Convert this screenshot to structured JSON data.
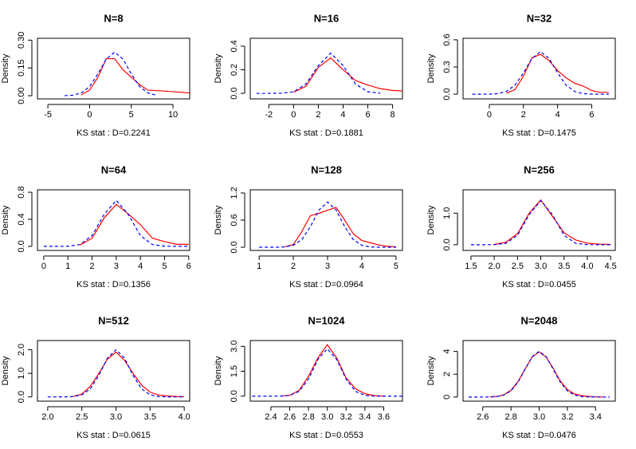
{
  "chart_data": [
    {
      "type": "line",
      "title": "N=8",
      "x_label": "KS stat : D=0.2241",
      "y_label": "Density",
      "x": [
        -3,
        -2,
        -1,
        0,
        1,
        2,
        3,
        4,
        5,
        6,
        7,
        8,
        10,
        12
      ],
      "series": [
        {
          "color": "#ff0000",
          "values": [
            null,
            null,
            0.005,
            0.03,
            0.1,
            0.2,
            0.2,
            0.14,
            0.1,
            0.06,
            0.03,
            0.028,
            0.022,
            0.015
          ]
        },
        {
          "color": "#0000ff",
          "dash": true,
          "values": [
            0.0005,
            0.003,
            0.015,
            0.049,
            0.118,
            0.198,
            0.235,
            0.198,
            0.118,
            0.049,
            0.015,
            0.003,
            null,
            null
          ]
        }
      ],
      "xlim": [
        -6.25,
        12
      ],
      "ylim": [
        -0.017,
        0.31
      ],
      "xticks": [
        -5,
        0,
        5,
        10
      ],
      "yticks": [
        {
          "value": 0,
          "label": "0.00"
        },
        {
          "value": 0.15,
          "label": "0.15"
        },
        {
          "value": 0.3,
          "label": "0.30"
        }
      ]
    },
    {
      "type": "line",
      "title": "N=16",
      "x_label": "KS stat : D=0.1881",
      "y_label": "Density",
      "x": [
        -3,
        -2,
        -1,
        0,
        1,
        2,
        3,
        4,
        5,
        6,
        7,
        8,
        8.8
      ],
      "series": [
        {
          "color": "#ff0000",
          "values": [
            null,
            null,
            null,
            0.01,
            0.06,
            0.22,
            0.3,
            0.2,
            0.11,
            0.07,
            0.04,
            0.025,
            0.02
          ]
        },
        {
          "color": "#0000ff",
          "dash": true,
          "values": [
            0,
            0,
            0.001,
            0.013,
            0.079,
            0.236,
            0.34,
            0.236,
            0.079,
            0.013,
            0.001,
            null,
            null
          ]
        }
      ],
      "xlim": [
        -3.5,
        8.8
      ],
      "ylim": [
        -0.047,
        0.467
      ],
      "xticks": [
        -2,
        0,
        2,
        4,
        6,
        8
      ],
      "yticks": [
        {
          "value": 0,
          "label": "0.0"
        },
        0.2,
        0.4
      ]
    },
    {
      "type": "line",
      "title": "N=32",
      "x_label": "KS stat : D=0.1475",
      "y_label": "Density",
      "x": [
        -1,
        -0.5,
        0,
        0.5,
        1,
        1.5,
        2,
        2.5,
        3,
        3.5,
        4,
        4.5,
        5,
        5.5,
        6,
        6.5,
        7
      ],
      "series": [
        {
          "color": "#ff0000",
          "values": [
            null,
            null,
            null,
            null,
            0.01,
            0.05,
            0.2,
            0.4,
            0.44,
            0.37,
            0.26,
            0.18,
            0.12,
            0.09,
            0.04,
            0.02,
            0.02
          ]
        },
        {
          "color": "#0000ff",
          "dash": true,
          "values": [
            0,
            0,
            0.001,
            0.006,
            0.03,
            0.099,
            0.236,
            0.395,
            0.47,
            0.395,
            0.236,
            0.099,
            0.03,
            0.006,
            0.001,
            0,
            0
          ]
        }
      ],
      "xlim": [
        -1.54,
        7.38
      ],
      "ylim": [
        -0.052,
        0.617
      ],
      "xticks": [
        0,
        2,
        4,
        6
      ],
      "yticks": [
        {
          "value": 0,
          "label": "0.0"
        },
        0.3,
        0.6
      ]
    },
    {
      "type": "line",
      "title": "N=64",
      "x_label": "KS stat : D=0.1356",
      "y_label": "Density",
      "x": [
        0,
        0.5,
        1,
        1.5,
        2,
        2.5,
        3,
        3.5,
        4,
        4.5,
        5,
        5.5,
        6
      ],
      "series": [
        {
          "color": "#ff0000",
          "values": [
            null,
            null,
            null,
            0.02,
            0.12,
            0.42,
            0.62,
            0.48,
            0.32,
            0.12,
            0.07,
            0.03,
            0.03
          ]
        },
        {
          "color": "#0000ff",
          "dash": true,
          "values": [
            0,
            0,
            0.002,
            0.026,
            0.159,
            0.473,
            0.68,
            0.473,
            0.159,
            0.026,
            0.002,
            0,
            0
          ]
        }
      ],
      "xlim": [
        -0.26,
        6.04
      ],
      "ylim": [
        -0.06,
        0.836
      ],
      "xticks": [
        0,
        1,
        2,
        3,
        4,
        5,
        6
      ],
      "yticks": [
        {
          "value": 0,
          "label": "0.0"
        },
        0.4,
        0.8
      ]
    },
    {
      "type": "line",
      "title": "N=128",
      "x_label": "KS stat : D=0.0964",
      "y_label": "Density",
      "x": [
        1,
        1.25,
        1.5,
        1.75,
        2,
        2.25,
        2.5,
        2.75,
        3,
        3.25,
        3.5,
        3.75,
        4,
        4.25,
        4.5,
        4.75,
        5
      ],
      "series": [
        {
          "color": "#ff0000",
          "values": [
            null,
            null,
            null,
            0.01,
            0.06,
            0.35,
            0.7,
            0.75,
            0.82,
            0.88,
            0.6,
            0.3,
            0.15,
            0.1,
            0.05,
            0.02,
            0.01
          ]
        },
        {
          "color": "#0000ff",
          "dash": true,
          "values": [
            0,
            0,
            0.001,
            0.008,
            0.044,
            0.172,
            0.458,
            0.823,
            1,
            0.823,
            0.458,
            0.172,
            0.044,
            0.008,
            0.001,
            0,
            0
          ]
        }
      ],
      "xlim": [
        0.74,
        5.19
      ],
      "ylim": [
        -0.07,
        1.27
      ],
      "xticks": [
        1,
        2,
        3,
        4,
        5
      ],
      "yticks": [
        {
          "value": 0,
          "label": "0.0"
        },
        0.6,
        1.2
      ]
    },
    {
      "type": "line",
      "title": "N=256",
      "x_label": "KS stat : D=0.0455",
      "y_label": "Density",
      "x": [
        1.5,
        1.75,
        2,
        2.25,
        2.5,
        2.75,
        3,
        3.25,
        3.5,
        3.75,
        4,
        4.25,
        4.5
      ],
      "series": [
        {
          "color": "#ff0000",
          "values": [
            null,
            null,
            0.01,
            0.08,
            0.35,
            1.0,
            1.42,
            0.9,
            0.38,
            0.15,
            0.05,
            0.02,
            0.01
          ]
        },
        {
          "color": "#0000ff",
          "dash": true,
          "values": [
            0,
            0,
            0.003,
            0.044,
            0.3,
            0.953,
            1.4,
            0.953,
            0.3,
            0.044,
            0.003,
            0,
            0
          ]
        }
      ],
      "xlim": [
        1.33,
        4.6
      ],
      "ylim": [
        -0.18,
        1.74
      ],
      "xticks": [
        1.5,
        {
          "value": 2,
          "label": "2.0"
        },
        2.5,
        {
          "value": 3,
          "label": "3.0"
        },
        3.5,
        {
          "value": 4,
          "label": "4.0"
        },
        4.5
      ],
      "yticks": [
        {
          "value": 0,
          "label": "0.0"
        },
        {
          "value": 1,
          "label": "1.0"
        }
      ]
    },
    {
      "type": "line",
      "title": "N=512",
      "x_label": "KS stat : D=0.0615",
      "y_label": "Density",
      "x": [
        2,
        2.125,
        2.25,
        2.375,
        2.5,
        2.625,
        2.75,
        2.875,
        3,
        3.125,
        3.25,
        3.375,
        3.5,
        3.625,
        3.75,
        3.875,
        4
      ],
      "series": [
        {
          "color": "#ff0000",
          "values": [
            null,
            null,
            null,
            0.02,
            0.12,
            0.45,
            1.0,
            1.6,
            1.9,
            1.55,
            1.0,
            0.5,
            0.2,
            0.08,
            0.04,
            0.02,
            0.01
          ]
        },
        {
          "color": "#0000ff",
          "dash": true,
          "values": [
            0,
            0,
            0.002,
            0.015,
            0.088,
            0.344,
            0.916,
            1.646,
            2,
            1.646,
            0.916,
            0.344,
            0.088,
            0.015,
            0.002,
            0,
            0
          ]
        }
      ],
      "xlim": [
        1.85,
        4.08
      ],
      "ylim": [
        -0.18,
        2.39
      ],
      "xticks": [
        {
          "value": 2,
          "label": "2.0"
        },
        2.5,
        {
          "value": 3,
          "label": "3.0"
        },
        3.5,
        {
          "value": 4,
          "label": "4.0"
        }
      ],
      "yticks": [
        {
          "value": 0,
          "label": "0.0"
        },
        {
          "value": 1,
          "label": "1.0"
        },
        {
          "value": 2,
          "label": "2.0"
        }
      ]
    },
    {
      "type": "line",
      "title": "N=1024",
      "x_label": "KS stat : D=0.0553",
      "y_label": "Density",
      "x": [
        2.2,
        2.3,
        2.4,
        2.5,
        2.6,
        2.7,
        2.8,
        2.9,
        3,
        3.1,
        3.2,
        3.3,
        3.4,
        3.5,
        3.6,
        3.7,
        3.8
      ],
      "series": [
        {
          "color": "#ff0000",
          "values": [
            null,
            null,
            null,
            0.01,
            0.05,
            0.35,
            1.2,
            2.3,
            3.1,
            2.3,
            1.1,
            0.45,
            0.15,
            0.03,
            0.01,
            null,
            null
          ]
        },
        {
          "color": "#0000ff",
          "dash": true,
          "values": [
            0,
            0,
            0,
            0.005,
            0.048,
            0.286,
            1.03,
            2.21,
            2.85,
            2.21,
            1.03,
            0.286,
            0.048,
            0.005,
            0,
            0,
            0
          ]
        }
      ],
      "xlim": [
        2.18,
        3.8
      ],
      "ylim": [
        -0.3,
        3.35
      ],
      "xticks": [
        2.4,
        2.6,
        2.8,
        {
          "value": 3,
          "label": "3.0"
        },
        3.2,
        3.4,
        3.6
      ],
      "yticks": [
        {
          "value": 0,
          "label": "0.0"
        },
        1.5,
        {
          "value": 3,
          "label": "3.0"
        }
      ]
    },
    {
      "type": "line",
      "title": "N=2048",
      "x_label": "KS stat : D=0.0476",
      "y_label": "Density",
      "x": [
        2.5,
        2.55,
        2.6,
        2.65,
        2.7,
        2.75,
        2.8,
        2.85,
        2.9,
        2.95,
        3,
        3.05,
        3.1,
        3.15,
        3.2,
        3.25,
        3.3,
        3.35,
        3.4,
        3.45,
        3.5
      ],
      "series": [
        {
          "color": "#ff0000",
          "values": [
            null,
            null,
            null,
            0.01,
            0.05,
            0.2,
            0.6,
            1.35,
            2.45,
            3.5,
            3.95,
            3.5,
            2.5,
            1.4,
            0.65,
            0.28,
            0.12,
            0.05,
            0.02,
            0.01,
            null
          ]
        },
        {
          "color": "#0000ff",
          "dash": true,
          "values": [
            0,
            0,
            0.001,
            0.009,
            0.044,
            0.176,
            0.541,
            1.3,
            2.43,
            3.53,
            4,
            3.53,
            2.43,
            1.3,
            0.541,
            0.176,
            0.044,
            0.009,
            0.001,
            0,
            0
          ]
        }
      ],
      "xlim": [
        2.46,
        3.54
      ],
      "ylim": [
        -0.36,
        4.95
      ],
      "xticks": [
        2.6,
        2.8,
        {
          "value": 3,
          "label": "3.0"
        },
        3.2,
        3.4
      ],
      "yticks": [
        0,
        2,
        4
      ]
    }
  ]
}
